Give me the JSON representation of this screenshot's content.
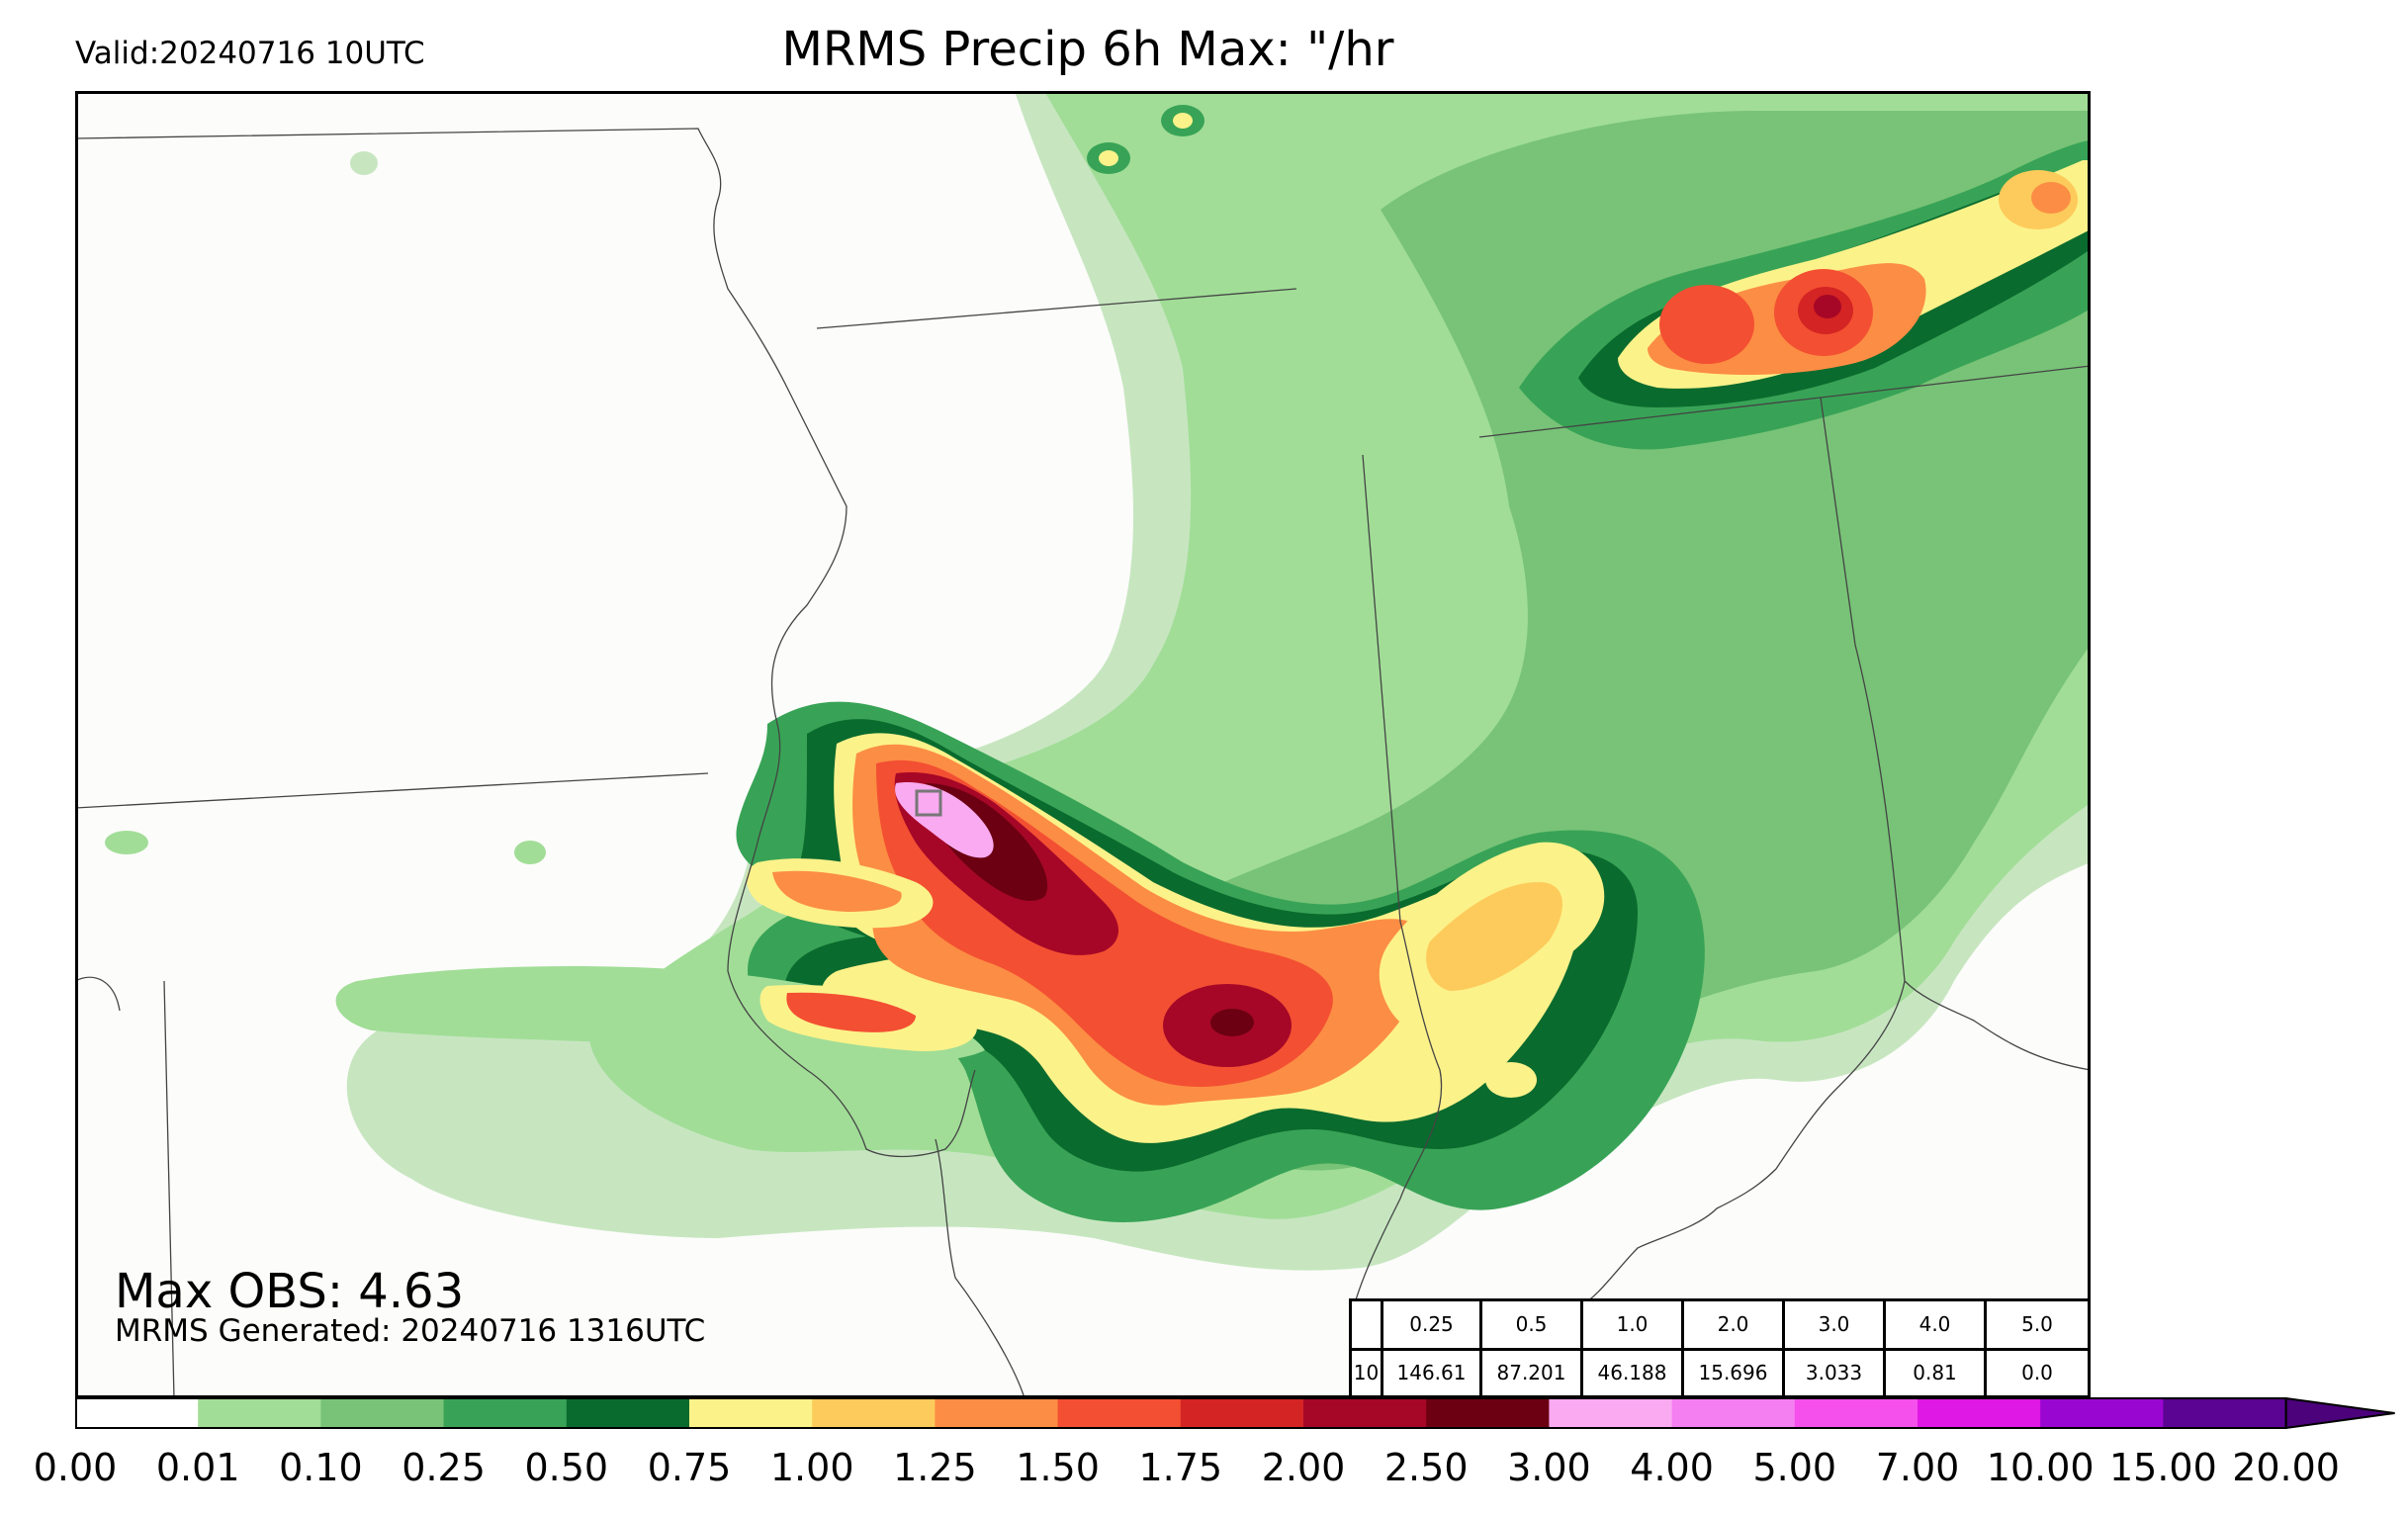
{
  "header": {
    "valid_text": "Valid:20240716 10UTC",
    "title": "MRMS Precip 6h Max: \"/hr"
  },
  "annotations": {
    "max_obs": "Max OBS: 4.63",
    "generated": "MRMS Generated: 20240716 1316UTC"
  },
  "stats_table": {
    "thresholds": [
      "0.25",
      "0.5",
      "1.0",
      "2.0",
      "3.0",
      "4.0",
      "5.0"
    ],
    "row_label": "10",
    "values": [
      "146.61",
      "87.201",
      "46.188",
      "15.696",
      "3.033",
      "0.81",
      "0.0"
    ]
  },
  "colorbar": {
    "ticks": [
      "0.00",
      "0.01",
      "0.10",
      "0.25",
      "0.50",
      "0.75",
      "1.00",
      "1.25",
      "1.50",
      "1.75",
      "2.00",
      "2.50",
      "3.00",
      "4.00",
      "5.00",
      "7.00",
      "10.00",
      "15.00",
      "20.00"
    ],
    "colors": [
      "#ffffff",
      "#c7e6c0",
      "#a1dd97",
      "#78c377",
      "#38a356",
      "#0a6b2e",
      "#fcf28a",
      "#fdcb5b",
      "#fc8d44",
      "#f34f32",
      "#d42423",
      "#a60727",
      "#6c0012",
      "#faaaf0",
      "#f47ff0",
      "#f550ec",
      "#df18e5",
      "#9a06d1",
      "#5b0393"
    ],
    "extend_color": "#4b027a"
  },
  "map_colors": {
    "lake_fill": "#7fbf84",
    "border": "#444444"
  }
}
